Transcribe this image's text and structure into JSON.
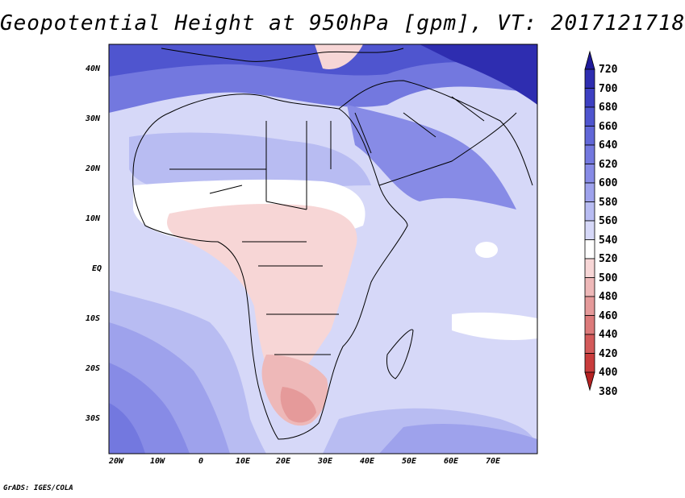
{
  "title": "Geopotential Height at 950hPa [gpm], VT: 2017121718",
  "credit": "GrADS: IGES/COLA",
  "lat_labels": [
    "40N",
    "30N",
    "20N",
    "10N",
    "EQ",
    "10S",
    "20S",
    "30S"
  ],
  "lon_labels": [
    "20W",
    "10W",
    "0",
    "10E",
    "20E",
    "30E",
    "40E",
    "50E",
    "60E",
    "70E"
  ],
  "colorbar": {
    "levels": [
      "720",
      "700",
      "680",
      "660",
      "640",
      "620",
      "600",
      "580",
      "560",
      "540",
      "520",
      "500",
      "480",
      "460",
      "440",
      "420",
      "400",
      "380"
    ],
    "colors": [
      "#1f1a9a",
      "#2e2db0",
      "#3d3fc2",
      "#4f55cf",
      "#6167d8",
      "#7378df",
      "#878be6",
      "#9ea2ec",
      "#b8bcf2",
      "#d6d8f8",
      "#ffffff",
      "#f7d6d6",
      "#eeb8b8",
      "#e59a9a",
      "#dc7a7a",
      "#d35a5a",
      "#c93c3c",
      "#b52222"
    ]
  },
  "map": {
    "region": "Africa and surroundings",
    "lon_range": [
      -20,
      80
    ],
    "lat_range": [
      -37,
      45
    ]
  }
}
